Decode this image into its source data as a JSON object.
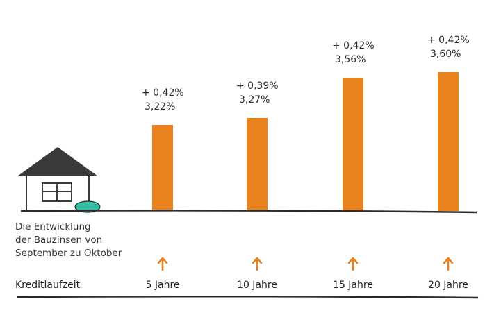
{
  "chart_data": {
    "type": "bar",
    "title": "",
    "xlabel": "Kreditlaufzeit",
    "ylabel": "",
    "categories": [
      "5 Jahre",
      "10 Jahre",
      "15 Jahre",
      "20 Jahre"
    ],
    "values": [
      3.22,
      3.27,
      3.56,
      3.6
    ],
    "value_labels": [
      "3,22%",
      "3,27%",
      "3,56%",
      "3,60%"
    ],
    "change_labels": [
      "+ 0,42%",
      "+ 0,39%",
      "+ 0,42%",
      "+ 0,42%"
    ],
    "changes": [
      0.42,
      0.39,
      0.42,
      0.42
    ],
    "description_lines": [
      "Die Entwicklung",
      "der Bauzinsen von",
      "September zu Oktober"
    ],
    "trend_icon": "up-arrow-icon",
    "decoration_icons": [
      "house-icon",
      "bush-icon"
    ],
    "colors": {
      "bar": "#e8821f",
      "arrow": "#e8821f",
      "baseline": "#2b2b2b",
      "bush": "#35bfa6",
      "house": "#3a3a3a"
    },
    "grid": false,
    "legend": "none"
  }
}
